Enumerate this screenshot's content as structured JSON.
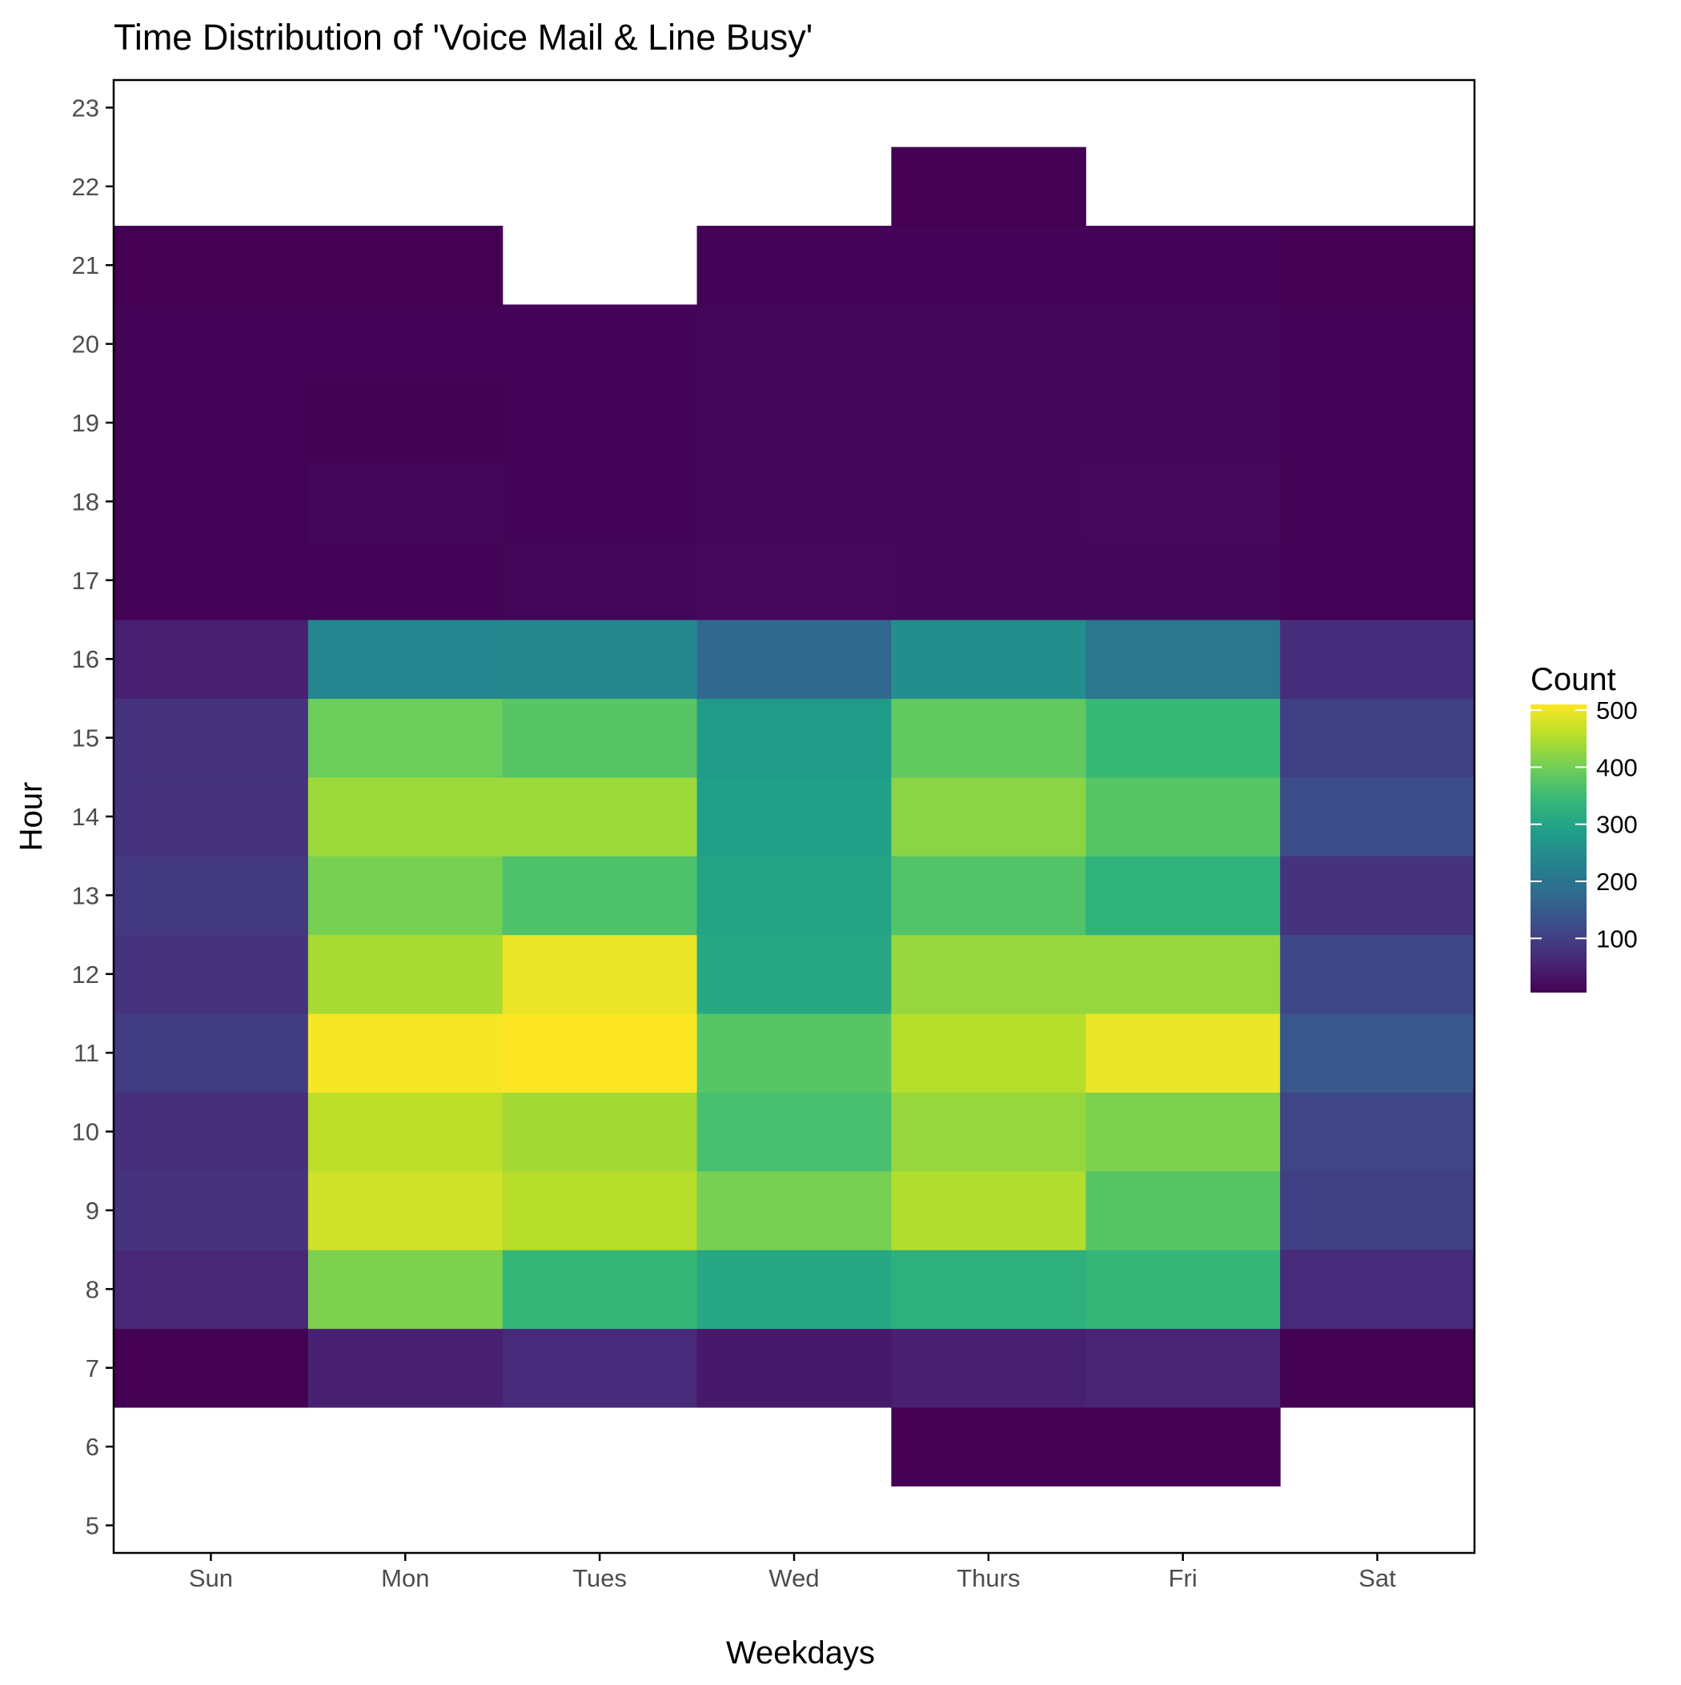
{
  "chart_data": {
    "type": "heatmap",
    "title": "Time Distribution of 'Voice Mail & Line Busy'",
    "xlabel": "Weekdays",
    "ylabel": "Hour",
    "x_categories": [
      "Sun",
      "Mon",
      "Tues",
      "Wed",
      "Thurs",
      "Fri",
      "Sat"
    ],
    "y_ticks": [
      5,
      6,
      7,
      8,
      9,
      10,
      11,
      12,
      13,
      14,
      15,
      16,
      17,
      18,
      19,
      20,
      21,
      22,
      23
    ],
    "ylim": [
      4.65,
      23.35
    ],
    "grid": false,
    "legend": {
      "title": "Count",
      "position": "right",
      "colormap": "viridis",
      "range": [
        5,
        510
      ],
      "tick_values": [
        100,
        200,
        300,
        400,
        500
      ],
      "tick_labels": [
        "100",
        "200",
        "300",
        "400",
        "500"
      ]
    },
    "cells": [
      {
        "day": "Sun",
        "hour": 7,
        "value": 5
      },
      {
        "day": "Sun",
        "hour": 8,
        "value": 60
      },
      {
        "day": "Sun",
        "hour": 9,
        "value": 80
      },
      {
        "day": "Sun",
        "hour": 10,
        "value": 75
      },
      {
        "day": "Sun",
        "hour": 11,
        "value": 95
      },
      {
        "day": "Sun",
        "hour": 12,
        "value": 80
      },
      {
        "day": "Sun",
        "hour": 13,
        "value": 90
      },
      {
        "day": "Sun",
        "hour": 14,
        "value": 80
      },
      {
        "day": "Sun",
        "hour": 15,
        "value": 80
      },
      {
        "day": "Sun",
        "hour": 16,
        "value": 50
      },
      {
        "day": "Sun",
        "hour": 17,
        "value": 8
      },
      {
        "day": "Sun",
        "hour": 18,
        "value": 8
      },
      {
        "day": "Sun",
        "hour": 19,
        "value": 8
      },
      {
        "day": "Sun",
        "hour": 20,
        "value": 8
      },
      {
        "day": "Sun",
        "hour": 21,
        "value": 5
      },
      {
        "day": "Mon",
        "hour": 7,
        "value": 50
      },
      {
        "day": "Mon",
        "hour": 8,
        "value": 410
      },
      {
        "day": "Mon",
        "hour": 9,
        "value": 475
      },
      {
        "day": "Mon",
        "hour": 10,
        "value": 460
      },
      {
        "day": "Mon",
        "hour": 11,
        "value": 505
      },
      {
        "day": "Mon",
        "hour": 12,
        "value": 445
      },
      {
        "day": "Mon",
        "hour": 13,
        "value": 405
      },
      {
        "day": "Mon",
        "hour": 14,
        "value": 435
      },
      {
        "day": "Mon",
        "hour": 15,
        "value": 395
      },
      {
        "day": "Mon",
        "hour": 16,
        "value": 235
      },
      {
        "day": "Mon",
        "hour": 17,
        "value": 10
      },
      {
        "day": "Mon",
        "hour": 18,
        "value": 12
      },
      {
        "day": "Mon",
        "hour": 19,
        "value": 6
      },
      {
        "day": "Mon",
        "hour": 20,
        "value": 8
      },
      {
        "day": "Mon",
        "hour": 21,
        "value": 5
      },
      {
        "day": "Tues",
        "hour": 7,
        "value": 65
      },
      {
        "day": "Tues",
        "hour": 8,
        "value": 340
      },
      {
        "day": "Tues",
        "hour": 9,
        "value": 455
      },
      {
        "day": "Tues",
        "hour": 10,
        "value": 440
      },
      {
        "day": "Tues",
        "hour": 11,
        "value": 510
      },
      {
        "day": "Tues",
        "hour": 12,
        "value": 495
      },
      {
        "day": "Tues",
        "hour": 13,
        "value": 365
      },
      {
        "day": "Tues",
        "hour": 14,
        "value": 435
      },
      {
        "day": "Tues",
        "hour": 15,
        "value": 375
      },
      {
        "day": "Tues",
        "hour": 16,
        "value": 240
      },
      {
        "day": "Tues",
        "hour": 17,
        "value": 12
      },
      {
        "day": "Tues",
        "hour": 18,
        "value": 10
      },
      {
        "day": "Tues",
        "hour": 19,
        "value": 10
      },
      {
        "day": "Tues",
        "hour": 20,
        "value": 10
      },
      {
        "day": "Wed",
        "hour": 7,
        "value": 40
      },
      {
        "day": "Wed",
        "hour": 8,
        "value": 305
      },
      {
        "day": "Wed",
        "hour": 9,
        "value": 405
      },
      {
        "day": "Wed",
        "hour": 10,
        "value": 360
      },
      {
        "day": "Wed",
        "hour": 11,
        "value": 375
      },
      {
        "day": "Wed",
        "hour": 12,
        "value": 305
      },
      {
        "day": "Wed",
        "hour": 13,
        "value": 300
      },
      {
        "day": "Wed",
        "hour": 14,
        "value": 290
      },
      {
        "day": "Wed",
        "hour": 15,
        "value": 280
      },
      {
        "day": "Wed",
        "hour": 16,
        "value": 175
      },
      {
        "day": "Wed",
        "hour": 17,
        "value": 15
      },
      {
        "day": "Wed",
        "hour": 18,
        "value": 12
      },
      {
        "day": "Wed",
        "hour": 19,
        "value": 12
      },
      {
        "day": "Wed",
        "hour": 20,
        "value": 12
      },
      {
        "day": "Wed",
        "hour": 21,
        "value": 8
      },
      {
        "day": "Thurs",
        "hour": 6,
        "value": 5
      },
      {
        "day": "Thurs",
        "hour": 7,
        "value": 50
      },
      {
        "day": "Thurs",
        "hour": 8,
        "value": 325
      },
      {
        "day": "Thurs",
        "hour": 9,
        "value": 450
      },
      {
        "day": "Thurs",
        "hour": 10,
        "value": 430
      },
      {
        "day": "Thurs",
        "hour": 11,
        "value": 455
      },
      {
        "day": "Thurs",
        "hour": 12,
        "value": 430
      },
      {
        "day": "Thurs",
        "hour": 13,
        "value": 370
      },
      {
        "day": "Thurs",
        "hour": 14,
        "value": 420
      },
      {
        "day": "Thurs",
        "hour": 15,
        "value": 385
      },
      {
        "day": "Thurs",
        "hour": 16,
        "value": 255
      },
      {
        "day": "Thurs",
        "hour": 17,
        "value": 14
      },
      {
        "day": "Thurs",
        "hour": 18,
        "value": 14
      },
      {
        "day": "Thurs",
        "hour": 19,
        "value": 14
      },
      {
        "day": "Thurs",
        "hour": 20,
        "value": 14
      },
      {
        "day": "Thurs",
        "hour": 21,
        "value": 10
      },
      {
        "day": "Thurs",
        "hour": 22,
        "value": 5
      },
      {
        "day": "Fri",
        "hour": 6,
        "value": 5
      },
      {
        "day": "Fri",
        "hour": 7,
        "value": 55
      },
      {
        "day": "Fri",
        "hour": 8,
        "value": 340
      },
      {
        "day": "Fri",
        "hour": 9,
        "value": 375
      },
      {
        "day": "Fri",
        "hour": 10,
        "value": 410
      },
      {
        "day": "Fri",
        "hour": 11,
        "value": 495
      },
      {
        "day": "Fri",
        "hour": 12,
        "value": 430
      },
      {
        "day": "Fri",
        "hour": 13,
        "value": 330
      },
      {
        "day": "Fri",
        "hour": 14,
        "value": 375
      },
      {
        "day": "Fri",
        "hour": 15,
        "value": 345
      },
      {
        "day": "Fri",
        "hour": 16,
        "value": 205
      },
      {
        "day": "Fri",
        "hour": 17,
        "value": 14
      },
      {
        "day": "Fri",
        "hour": 18,
        "value": 15
      },
      {
        "day": "Fri",
        "hour": 19,
        "value": 12
      },
      {
        "day": "Fri",
        "hour": 20,
        "value": 12
      },
      {
        "day": "Fri",
        "hour": 21,
        "value": 10
      },
      {
        "day": "Sat",
        "hour": 7,
        "value": 5
      },
      {
        "day": "Sat",
        "hour": 8,
        "value": 65
      },
      {
        "day": "Sat",
        "hour": 9,
        "value": 100
      },
      {
        "day": "Sat",
        "hour": 10,
        "value": 110
      },
      {
        "day": "Sat",
        "hour": 11,
        "value": 145
      },
      {
        "day": "Sat",
        "hour": 12,
        "value": 115
      },
      {
        "day": "Sat",
        "hour": 13,
        "value": 80
      },
      {
        "day": "Sat",
        "hour": 14,
        "value": 125
      },
      {
        "day": "Sat",
        "hour": 15,
        "value": 100
      },
      {
        "day": "Sat",
        "hour": 16,
        "value": 70
      },
      {
        "day": "Sat",
        "hour": 17,
        "value": 8
      },
      {
        "day": "Sat",
        "hour": 18,
        "value": 8
      },
      {
        "day": "Sat",
        "hour": 19,
        "value": 8
      },
      {
        "day": "Sat",
        "hour": 20,
        "value": 8
      },
      {
        "day": "Sat",
        "hour": 21,
        "value": 5
      }
    ]
  },
  "colors": {
    "background": "#ffffff",
    "axis": "#000000",
    "tick_text": "#4d4d4d",
    "viridis_stops": [
      "#440154",
      "#482878",
      "#3e4989",
      "#31688e",
      "#26828e",
      "#1f9e89",
      "#35b779",
      "#6ece58",
      "#b5de2b",
      "#fde725"
    ]
  }
}
